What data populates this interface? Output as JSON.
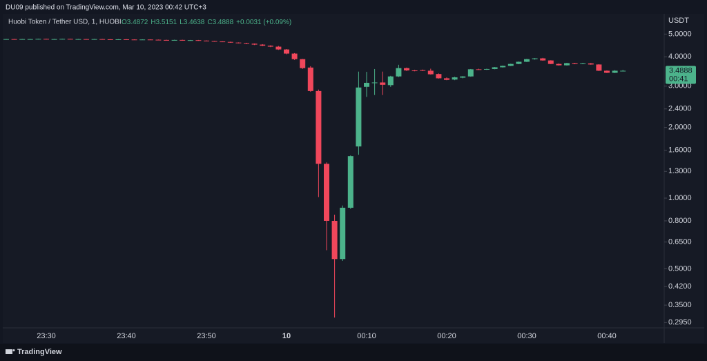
{
  "header": "DU09 published on TradingView.com, Mar 10, 2023 00:42 UTC+3",
  "footer": "TradingView",
  "chart_data": {
    "type": "candlestick",
    "legend": {
      "symbol": "Huobi Token / Tether USD, 1, HUOBI",
      "open": "O3.4872",
      "high": "H3.5151",
      "low": "L3.4638",
      "close": "C3.4888",
      "change": "+0.0031 (+0.09%)"
    },
    "y_axis_label": "USDT",
    "last_price_label": "3.4888",
    "countdown": "00:41",
    "log_scale": true,
    "grid": false,
    "up_color": "#4cb38b",
    "down_color": "#f0475b",
    "categories": [
      null,
      null,
      null,
      null,
      null,
      "23:30",
      null,
      null,
      null,
      null,
      null,
      null,
      null,
      null,
      null,
      "23:40",
      null,
      null,
      null,
      null,
      null,
      null,
      null,
      null,
      null,
      "23:50",
      null,
      null,
      null,
      null,
      null,
      null,
      null,
      null,
      null,
      "10",
      null,
      null,
      null,
      null,
      null,
      null,
      null,
      null,
      null,
      "00:10",
      null,
      null,
      null,
      null,
      null,
      null,
      null,
      null,
      null,
      "00:20",
      null,
      null,
      null,
      null,
      null,
      null,
      null,
      null,
      null,
      "00:30",
      null,
      null,
      null,
      null,
      null,
      null,
      null,
      null,
      null,
      "00:40",
      null,
      null
    ],
    "open": [
      4.75,
      4.76,
      4.75,
      4.76,
      4.76,
      4.77,
      4.76,
      4.76,
      4.77,
      4.76,
      4.76,
      4.75,
      4.76,
      4.75,
      4.74,
      4.75,
      4.74,
      4.73,
      4.74,
      4.73,
      4.72,
      4.71,
      4.72,
      4.7,
      4.71,
      4.69,
      4.67,
      4.65,
      4.63,
      4.6,
      4.57,
      4.55,
      4.51,
      4.46,
      4.42,
      4.3,
      4.13,
      3.91,
      3.6,
      2.86,
      1.4,
      0.8,
      0.55,
      0.91,
      1.66,
      2.98,
      3.09,
      3.11,
      3.03,
      3.3,
      3.58,
      3.5,
      3.51,
      3.49,
      3.38,
      3.24,
      3.2,
      3.26,
      3.3,
      3.54,
      3.53,
      3.55,
      3.61,
      3.66,
      3.73,
      3.81,
      3.91,
      3.94,
      3.86,
      3.73,
      3.68,
      3.76,
      3.74,
      3.75,
      3.71,
      3.49,
      3.42,
      3.4872
    ],
    "high": [
      4.77,
      4.77,
      4.77,
      4.77,
      4.78,
      4.78,
      4.77,
      4.78,
      4.78,
      4.77,
      4.77,
      4.77,
      4.77,
      4.76,
      4.76,
      4.76,
      4.75,
      4.75,
      4.75,
      4.74,
      4.73,
      4.73,
      4.73,
      4.72,
      4.72,
      4.7,
      4.68,
      4.66,
      4.64,
      4.61,
      4.59,
      4.56,
      4.53,
      4.48,
      4.45,
      4.32,
      4.15,
      3.92,
      3.65,
      2.9,
      1.42,
      0.85,
      0.93,
      1.52,
      3.46,
      3.45,
      3.55,
      3.46,
      3.32,
      3.7,
      3.6,
      3.52,
      3.53,
      3.56,
      3.4,
      3.27,
      3.29,
      3.31,
      3.55,
      3.56,
      3.56,
      3.62,
      3.67,
      3.74,
      3.82,
      3.92,
      3.95,
      3.96,
      3.87,
      3.75,
      3.77,
      3.77,
      3.77,
      3.77,
      3.72,
      3.5,
      3.51,
      3.5151
    ],
    "low": [
      4.74,
      4.75,
      4.74,
      4.75,
      4.75,
      4.75,
      4.75,
      4.75,
      4.76,
      4.75,
      4.74,
      4.74,
      4.74,
      4.73,
      4.73,
      4.73,
      4.72,
      4.72,
      4.72,
      4.71,
      4.7,
      4.7,
      4.69,
      4.69,
      4.68,
      4.66,
      4.64,
      4.62,
      4.59,
      4.56,
      4.53,
      4.49,
      4.44,
      4.4,
      4.28,
      4.1,
      3.88,
      3.55,
      2.84,
      1.01,
      0.6,
      0.31,
      0.54,
      0.9,
      1.53,
      2.7,
      2.75,
      2.75,
      2.98,
      3.28,
      3.48,
      3.47,
      3.48,
      3.36,
      3.23,
      3.18,
      3.18,
      3.24,
      3.29,
      3.52,
      3.52,
      3.54,
      3.6,
      3.65,
      3.72,
      3.8,
      3.89,
      3.85,
      3.72,
      3.67,
      3.67,
      3.72,
      3.72,
      3.7,
      3.48,
      3.41,
      3.41,
      3.4638
    ],
    "close": [
      4.76,
      4.75,
      4.76,
      4.76,
      4.77,
      4.76,
      4.76,
      4.77,
      4.76,
      4.76,
      4.75,
      4.76,
      4.75,
      4.74,
      4.75,
      4.74,
      4.73,
      4.74,
      4.73,
      4.72,
      4.71,
      4.72,
      4.7,
      4.71,
      4.69,
      4.67,
      4.65,
      4.63,
      4.6,
      4.57,
      4.55,
      4.51,
      4.46,
      4.42,
      4.3,
      4.13,
      3.91,
      3.58,
      2.86,
      1.4,
      0.8,
      0.55,
      0.91,
      1.51,
      2.96,
      3.1,
      3.11,
      3.04,
      3.3,
      3.58,
      3.5,
      3.49,
      3.49,
      3.37,
      3.24,
      3.19,
      3.27,
      3.3,
      3.54,
      3.53,
      3.55,
      3.61,
      3.66,
      3.73,
      3.81,
      3.91,
      3.94,
      3.86,
      3.73,
      3.68,
      3.76,
      3.73,
      3.75,
      3.71,
      3.49,
      3.42,
      3.49,
      3.4888
    ],
    "ylim": [
      0.28,
      6.1
    ],
    "yticks": [
      {
        "value": 5,
        "label": "5.0000"
      },
      {
        "value": 4,
        "label": "4.0000"
      },
      {
        "value": 3,
        "label": "3.0000"
      },
      {
        "value": 2.4,
        "label": "2.4000"
      },
      {
        "value": 2,
        "label": "2.0000"
      },
      {
        "value": 1.6,
        "label": "1.6000"
      },
      {
        "value": 1.3,
        "label": "1.3000"
      },
      {
        "value": 1,
        "label": "1.0000"
      },
      {
        "value": 0.8,
        "label": "0.8000"
      },
      {
        "value": 0.65,
        "label": "0.6500"
      },
      {
        "value": 0.5,
        "label": "0.5000"
      },
      {
        "value": 0.42,
        "label": "0.4200"
      },
      {
        "value": 0.35,
        "label": "0.3500"
      },
      {
        "value": 0.295,
        "label": "0.2950"
      }
    ]
  }
}
